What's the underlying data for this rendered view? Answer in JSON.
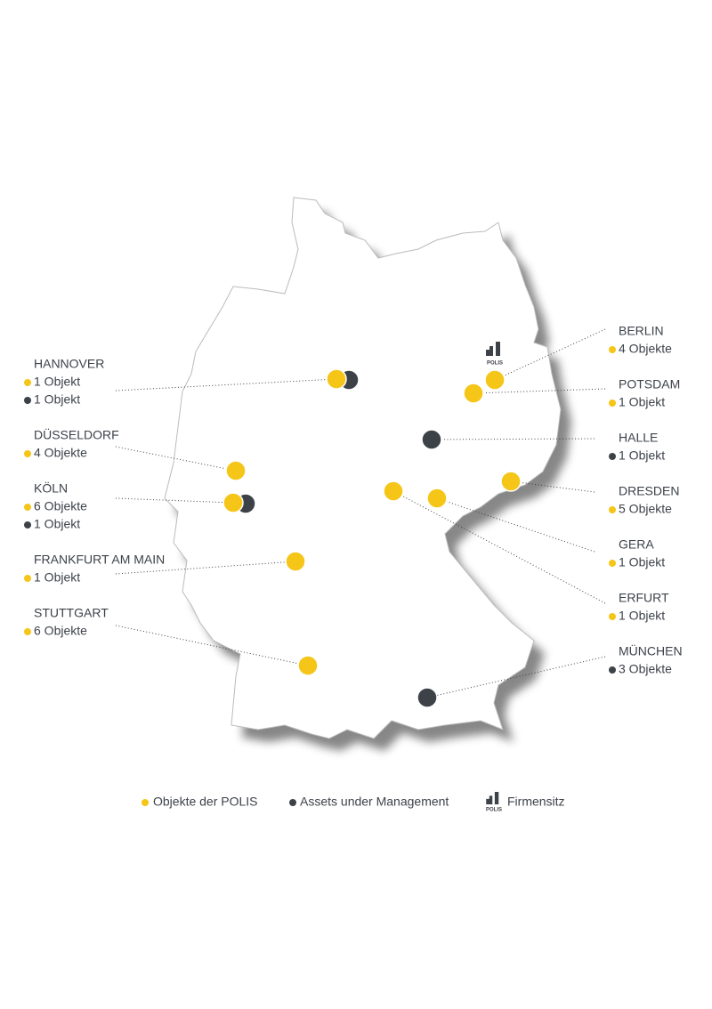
{
  "cities": [
    {
      "name": "HANNOVER",
      "entries": [
        {
          "text": "1 Objekt",
          "color": "#f5c518"
        },
        {
          "text": "1 Objekt",
          "color": "#3d4249"
        }
      ]
    },
    {
      "name": "DÜSSELDORF",
      "entries": [
        {
          "text": "4 Objekte",
          "color": "#f5c518"
        }
      ]
    },
    {
      "name": "KÖLN",
      "entries": [
        {
          "text": "6 Objekte",
          "color": "#f5c518"
        },
        {
          "text": "1 Objekt",
          "color": "#3d4249"
        }
      ]
    },
    {
      "name": "FRANKFURT AM MAIN",
      "entries": [
        {
          "text": "1 Objekt",
          "color": "#f5c518"
        }
      ]
    },
    {
      "name": "STUTTGART",
      "entries": [
        {
          "text": "6 Objekte",
          "color": "#f5c518"
        }
      ]
    },
    {
      "name": "BERLIN",
      "entries": [
        {
          "text": "4 Objekte",
          "color": "#f5c518"
        }
      ]
    },
    {
      "name": "POTSDAM",
      "entries": [
        {
          "text": "1 Objekt",
          "color": "#f5c518"
        }
      ]
    },
    {
      "name": "HALLE",
      "entries": [
        {
          "text": "1 Objekt",
          "color": "#3d4249"
        }
      ]
    },
    {
      "name": "DRESDEN",
      "entries": [
        {
          "text": "5 Objekte",
          "color": "#f5c518"
        }
      ]
    },
    {
      "name": "GERA",
      "entries": [
        {
          "text": "1 Objekt",
          "color": "#f5c518"
        }
      ]
    },
    {
      "name": "ERFURT",
      "entries": [
        {
          "text": "1 Objekt",
          "color": "#f5c518"
        }
      ]
    },
    {
      "name": "MÜNCHEN",
      "entries": [
        {
          "text": "3 Objekte",
          "color": "#3d4249"
        }
      ]
    }
  ],
  "legend": [
    {
      "text": "Objekte der POLIS",
      "color": "#f5c518"
    },
    {
      "text": "Assets under Management",
      "color": "#3d4249"
    },
    {
      "text": "Firmensitz"
    }
  ],
  "logo": "POLIS"
}
